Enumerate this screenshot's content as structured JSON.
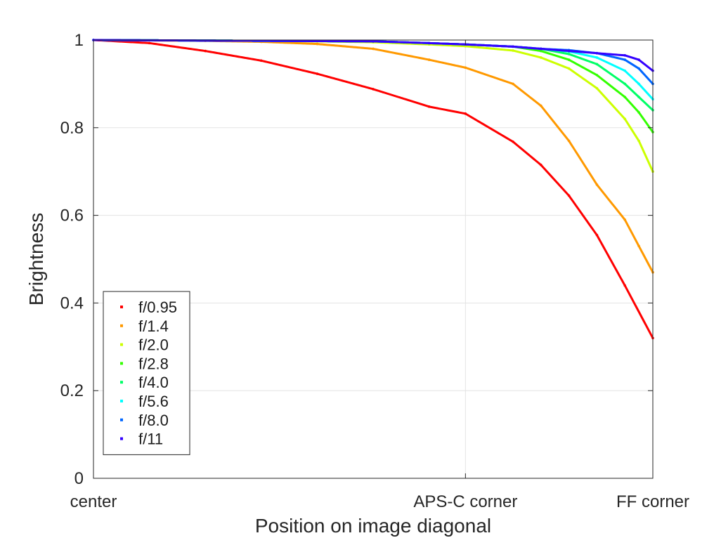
{
  "chart_data": {
    "type": "scatter",
    "title": "",
    "xlabel": "Position on image diagonal",
    "ylabel": "Brightness",
    "xlim": [
      0,
      1
    ],
    "ylim": [
      0,
      1
    ],
    "grid": true,
    "legend_position": "bottom-left",
    "x_ticks": [
      {
        "value": 0,
        "label": "center"
      },
      {
        "value": 0.665,
        "label": "APS-C corner"
      },
      {
        "value": 1,
        "label": "FF corner"
      }
    ],
    "y_ticks": [
      {
        "value": 0,
        "label": "0"
      },
      {
        "value": 0.2,
        "label": "0.2"
      },
      {
        "value": 0.4,
        "label": "0.4"
      },
      {
        "value": 0.6,
        "label": "0.6"
      },
      {
        "value": 0.8,
        "label": "0.8"
      },
      {
        "value": 1,
        "label": "1"
      }
    ],
    "series": [
      {
        "name": "f/0.95",
        "color": "#ff0000",
        "x": [
          0,
          0.1,
          0.2,
          0.3,
          0.4,
          0.5,
          0.6,
          0.665,
          0.75,
          0.8,
          0.85,
          0.9,
          0.95,
          1.0
        ],
        "y": [
          1.0,
          0.993,
          0.975,
          0.953,
          0.923,
          0.888,
          0.848,
          0.832,
          0.768,
          0.715,
          0.645,
          0.555,
          0.44,
          0.32
        ]
      },
      {
        "name": "f/1.4",
        "color": "#ff9900",
        "x": [
          0,
          0.2,
          0.3,
          0.4,
          0.5,
          0.6,
          0.665,
          0.75,
          0.8,
          0.85,
          0.9,
          0.95,
          0.975,
          1.0
        ],
        "y": [
          1.0,
          0.998,
          0.996,
          0.991,
          0.98,
          0.955,
          0.937,
          0.9,
          0.85,
          0.77,
          0.67,
          0.59,
          0.53,
          0.47
        ]
      },
      {
        "name": "f/2.0",
        "color": "#ccff00",
        "x": [
          0,
          0.4,
          0.5,
          0.6,
          0.665,
          0.75,
          0.8,
          0.85,
          0.9,
          0.95,
          0.975,
          1.0
        ],
        "y": [
          1.0,
          0.997,
          0.995,
          0.99,
          0.986,
          0.976,
          0.96,
          0.935,
          0.89,
          0.82,
          0.77,
          0.7
        ]
      },
      {
        "name": "f/2.8",
        "color": "#33ff00",
        "x": [
          0,
          0.5,
          0.6,
          0.665,
          0.75,
          0.8,
          0.85,
          0.9,
          0.95,
          0.975,
          1.0
        ],
        "y": [
          1.0,
          0.997,
          0.993,
          0.99,
          0.985,
          0.975,
          0.955,
          0.92,
          0.87,
          0.835,
          0.79
        ]
      },
      {
        "name": "f/4.0",
        "color": "#00ff66",
        "x": [
          0,
          0.5,
          0.6,
          0.665,
          0.75,
          0.8,
          0.85,
          0.9,
          0.95,
          0.975,
          1.0
        ],
        "y": [
          1.0,
          0.997,
          0.993,
          0.99,
          0.985,
          0.98,
          0.968,
          0.945,
          0.9,
          0.87,
          0.84
        ]
      },
      {
        "name": "f/5.6",
        "color": "#00ffff",
        "x": [
          0,
          0.5,
          0.6,
          0.665,
          0.75,
          0.8,
          0.85,
          0.9,
          0.95,
          0.975,
          1.0
        ],
        "y": [
          1.0,
          0.997,
          0.993,
          0.99,
          0.985,
          0.98,
          0.974,
          0.96,
          0.93,
          0.9,
          0.865
        ]
      },
      {
        "name": "f/8.0",
        "color": "#0066ff",
        "x": [
          0,
          0.5,
          0.6,
          0.665,
          0.75,
          0.8,
          0.85,
          0.9,
          0.95,
          0.975,
          1.0
        ],
        "y": [
          1.0,
          0.997,
          0.993,
          0.99,
          0.985,
          0.98,
          0.977,
          0.97,
          0.955,
          0.935,
          0.9
        ]
      },
      {
        "name": "f/11",
        "color": "#3300ff",
        "x": [
          0,
          0.5,
          0.6,
          0.665,
          0.75,
          0.8,
          0.85,
          0.9,
          0.95,
          0.975,
          1.0
        ],
        "y": [
          1.0,
          0.997,
          0.993,
          0.99,
          0.985,
          0.98,
          0.975,
          0.97,
          0.965,
          0.955,
          0.93
        ]
      }
    ]
  }
}
